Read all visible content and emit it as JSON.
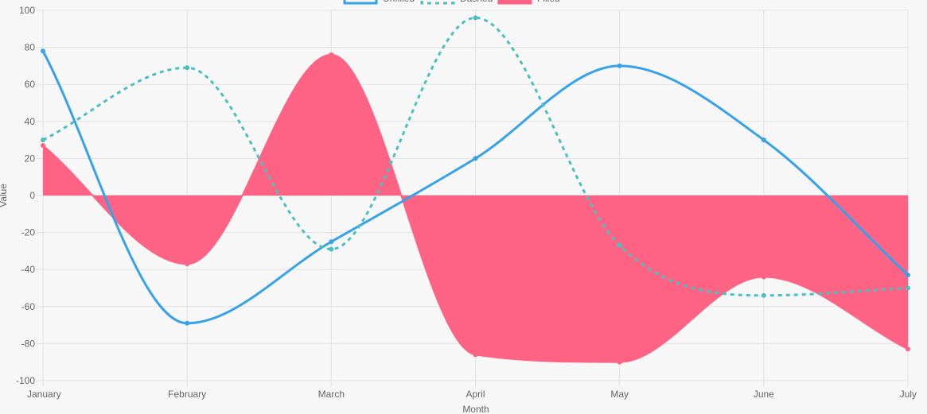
{
  "chart_data": {
    "type": "line",
    "categories": [
      "January",
      "February",
      "March",
      "April",
      "May",
      "June",
      "July"
    ],
    "series": [
      {
        "name": "Unfilled",
        "values": [
          78,
          -69,
          -25,
          20,
          70,
          30,
          -43
        ],
        "color": "#36a2eb",
        "dashed": false,
        "fill": false
      },
      {
        "name": "Dashed",
        "values": [
          30,
          69,
          -29,
          96,
          -27,
          -54,
          -50
        ],
        "color": "#4bc0c0",
        "dashed": true,
        "fill": false
      },
      {
        "name": "Filled",
        "values": [
          27,
          -37,
          76,
          -86,
          -90,
          -44,
          -83
        ],
        "color": "#ff6384",
        "dashed": false,
        "fill": true
      }
    ],
    "xlabel": "Month",
    "ylabel": "Value",
    "ylim": [
      -100,
      100
    ],
    "yticks": [
      100,
      80,
      60,
      40,
      20,
      0,
      -20,
      -40,
      -60,
      -80,
      -100
    ],
    "grid": true,
    "legend": "top-center"
  }
}
